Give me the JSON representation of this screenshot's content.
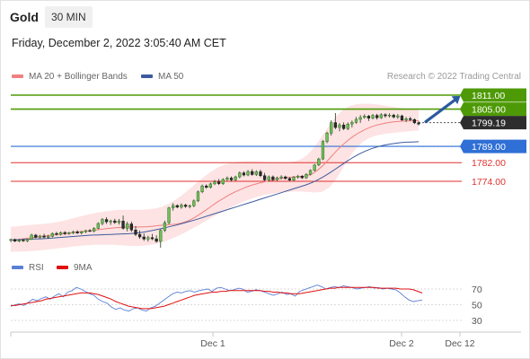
{
  "header": {
    "symbol": "Gold",
    "timeframe": "30 MIN",
    "datetime": "Friday, December 2, 2022 3:05:40 AM CET"
  },
  "legend": {
    "ma20_label": "MA 20 + Bollinger Bands",
    "ma50_label": "MA 50",
    "credit": "Research © 2022 Trading Central"
  },
  "rsi_legend": {
    "rsi_label": "RSI",
    "ma_label": "9MA"
  },
  "colors": {
    "resistance": "#4e9a06",
    "current_tag": "#2d2d2d",
    "pivot": "#2f6fd6",
    "support": "#e03131",
    "ma20": "#f08080",
    "ma50": "#3d5a9e",
    "band_fill": "#fde0e0",
    "arrow": "#2c5aa0",
    "rsi": "#5b7fd6",
    "rsi_ma": "#e01010"
  },
  "chart_data": [
    {
      "type": "candlestick",
      "instrument": "Gold",
      "timeframe": "30 MIN",
      "x_ticks": [
        "Dec 1",
        "Dec 2",
        "Dec 12"
      ],
      "ylim": [
        1745,
        1815
      ],
      "levels": [
        {
          "value": 1811.0,
          "label": "1811.00",
          "kind": "resistance"
        },
        {
          "value": 1805.0,
          "label": "1805.00",
          "kind": "resistance"
        },
        {
          "value": 1799.19,
          "label": "1799.19",
          "kind": "current"
        },
        {
          "value": 1789.0,
          "label": "1789.00",
          "kind": "pivot"
        },
        {
          "value": 1782.0,
          "label": "1782.00",
          "kind": "support"
        },
        {
          "value": 1774.0,
          "label": "1774.00",
          "kind": "support"
        }
      ],
      "ohlc": [
        [
          1748.6,
          1749.4,
          1747.9,
          1749.0
        ],
        [
          1749.0,
          1749.4,
          1747.9,
          1748.3
        ],
        [
          1748.3,
          1749.2,
          1747.8,
          1748.7
        ],
        [
          1748.7,
          1749.3,
          1748.0,
          1748.4
        ],
        [
          1748.4,
          1749.4,
          1747.9,
          1749.1
        ],
        [
          1749.1,
          1751.5,
          1748.8,
          1750.9
        ],
        [
          1750.9,
          1751.4,
          1749.6,
          1749.9
        ],
        [
          1749.9,
          1751.0,
          1749.3,
          1750.5
        ],
        [
          1750.5,
          1751.5,
          1749.6,
          1750.0
        ],
        [
          1750.0,
          1751.0,
          1749.4,
          1750.4
        ],
        [
          1750.4,
          1752.0,
          1750.0,
          1751.6
        ],
        [
          1751.6,
          1752.3,
          1750.7,
          1751.2
        ],
        [
          1751.2,
          1752.4,
          1750.7,
          1752.0
        ],
        [
          1752.0,
          1752.6,
          1750.9,
          1751.5
        ],
        [
          1751.5,
          1752.3,
          1751.0,
          1751.9
        ],
        [
          1751.9,
          1752.8,
          1751.3,
          1752.3
        ],
        [
          1752.3,
          1753.0,
          1751.4,
          1751.8
        ],
        [
          1751.8,
          1752.7,
          1751.2,
          1752.3
        ],
        [
          1752.3,
          1753.2,
          1751.8,
          1752.8
        ],
        [
          1752.8,
          1753.5,
          1752.2,
          1752.6
        ],
        [
          1752.6,
          1754.3,
          1752.1,
          1753.8
        ],
        [
          1753.8,
          1756.4,
          1753.4,
          1755.9
        ],
        [
          1755.9,
          1758.2,
          1755.1,
          1757.6
        ],
        [
          1757.6,
          1758.6,
          1755.7,
          1756.6
        ],
        [
          1756.6,
          1757.5,
          1755.3,
          1757.0
        ],
        [
          1757.0,
          1757.9,
          1755.7,
          1756.3
        ],
        [
          1756.3,
          1757.8,
          1755.4,
          1756.9
        ],
        [
          1756.9,
          1759.3,
          1753.2,
          1753.8
        ],
        [
          1753.8,
          1756.6,
          1752.5,
          1755.7
        ],
        [
          1755.7,
          1756.7,
          1752.3,
          1753.1
        ],
        [
          1753.1,
          1754.8,
          1750.5,
          1751.2
        ],
        [
          1751.2,
          1752.9,
          1749.3,
          1750.1
        ],
        [
          1750.1,
          1751.6,
          1748.4,
          1749.2
        ],
        [
          1749.2,
          1750.6,
          1748.1,
          1749.8
        ],
        [
          1749.8,
          1751.4,
          1748.7,
          1749.3
        ],
        [
          1749.3,
          1750.8,
          1747.6,
          1748.2
        ],
        [
          1748.2,
          1753.4,
          1745.5,
          1752.9
        ],
        [
          1752.9,
          1757.1,
          1752.2,
          1756.2
        ],
        [
          1756.2,
          1763.0,
          1755.6,
          1762.6
        ],
        [
          1762.6,
          1764.6,
          1761.4,
          1763.6
        ],
        [
          1763.6,
          1764.1,
          1762.4,
          1762.9
        ],
        [
          1762.9,
          1764.5,
          1762.2,
          1763.8
        ],
        [
          1763.8,
          1764.3,
          1762.6,
          1763.2
        ],
        [
          1763.2,
          1764.0,
          1762.4,
          1763.5
        ],
        [
          1763.5,
          1766.2,
          1762.9,
          1765.6
        ],
        [
          1765.6,
          1770.0,
          1765.1,
          1769.5
        ],
        [
          1769.5,
          1772.6,
          1768.9,
          1772.0
        ],
        [
          1772.0,
          1772.7,
          1770.8,
          1771.4
        ],
        [
          1771.4,
          1773.4,
          1770.9,
          1772.9
        ],
        [
          1772.9,
          1774.6,
          1772.4,
          1773.8
        ],
        [
          1773.8,
          1775.0,
          1772.4,
          1773.0
        ],
        [
          1773.0,
          1775.3,
          1772.5,
          1774.8
        ],
        [
          1774.8,
          1776.1,
          1774.2,
          1775.4
        ],
        [
          1775.4,
          1776.1,
          1773.9,
          1774.6
        ],
        [
          1774.6,
          1776.4,
          1774.1,
          1775.9
        ],
        [
          1775.9,
          1778.2,
          1775.3,
          1777.6
        ],
        [
          1777.6,
          1778.3,
          1776.1,
          1776.7
        ],
        [
          1776.7,
          1778.8,
          1776.2,
          1778.2
        ],
        [
          1778.2,
          1779.2,
          1776.4,
          1776.9
        ],
        [
          1776.9,
          1778.7,
          1776.3,
          1778.1
        ],
        [
          1778.1,
          1779.0,
          1775.8,
          1776.4
        ],
        [
          1776.4,
          1777.6,
          1774.0,
          1774.6
        ],
        [
          1774.6,
          1776.5,
          1773.9,
          1775.9
        ],
        [
          1775.9,
          1776.5,
          1774.1,
          1774.7
        ],
        [
          1774.7,
          1776.0,
          1774.2,
          1775.5
        ],
        [
          1775.5,
          1776.6,
          1774.8,
          1775.9
        ],
        [
          1775.9,
          1776.4,
          1774.7,
          1775.2
        ],
        [
          1775.2,
          1775.8,
          1773.9,
          1774.5
        ],
        [
          1774.5,
          1776.3,
          1774.0,
          1775.8
        ],
        [
          1775.8,
          1776.8,
          1775.1,
          1776.2
        ],
        [
          1776.2,
          1776.7,
          1775.0,
          1775.5
        ],
        [
          1775.5,
          1777.5,
          1775.0,
          1777.0
        ],
        [
          1777.0,
          1779.1,
          1776.5,
          1778.7
        ],
        [
          1778.7,
          1781.4,
          1778.2,
          1781.0
        ],
        [
          1781.0,
          1784.1,
          1780.5,
          1783.6
        ],
        [
          1783.6,
          1791.7,
          1783.1,
          1791.1
        ],
        [
          1791.1,
          1795.3,
          1790.4,
          1794.7
        ],
        [
          1794.7,
          1800.2,
          1793.6,
          1799.2
        ],
        [
          1799.2,
          1803.3,
          1796.4,
          1797.1
        ],
        [
          1797.1,
          1799.0,
          1795.5,
          1798.2
        ],
        [
          1798.2,
          1799.3,
          1796.0,
          1796.6
        ],
        [
          1796.6,
          1799.3,
          1796.0,
          1798.6
        ],
        [
          1798.6,
          1800.1,
          1797.1,
          1799.3
        ],
        [
          1799.3,
          1801.6,
          1798.7,
          1800.6
        ],
        [
          1800.6,
          1802.4,
          1799.1,
          1801.4
        ],
        [
          1801.4,
          1802.8,
          1800.9,
          1802.0
        ],
        [
          1802.0,
          1802.5,
          1799.9,
          1801.1
        ],
        [
          1801.1,
          1802.9,
          1800.6,
          1802.3
        ],
        [
          1802.3,
          1803.0,
          1800.5,
          1801.3
        ],
        [
          1801.3,
          1803.2,
          1800.8,
          1802.6
        ],
        [
          1802.6,
          1803.2,
          1801.3,
          1802.1
        ],
        [
          1802.1,
          1803.2,
          1801.4,
          1802.4
        ],
        [
          1802.4,
          1803.0,
          1801.0,
          1801.6
        ],
        [
          1801.6,
          1802.9,
          1800.8,
          1802.1
        ],
        [
          1802.1,
          1802.6,
          1799.9,
          1800.3
        ],
        [
          1800.3,
          1801.6,
          1799.4,
          1800.9
        ],
        [
          1800.9,
          1801.7,
          1799.8,
          1800.5
        ],
        [
          1800.5,
          1801.0,
          1798.6,
          1799.1
        ],
        [
          1799.1,
          1799.8,
          1798.0,
          1798.6
        ]
      ],
      "ma20": [
        1748.6,
        1748.9,
        1749.3,
        1749.6,
        1750.0,
        1750.3,
        1750.6,
        1750.9,
        1751.2,
        1751.5,
        1751.8,
        1752.1,
        1752.4,
        1752.7,
        1753.0,
        1753.3,
        1753.6,
        1753.9,
        1754.1,
        1754.3,
        1754.4,
        1754.4,
        1754.4,
        1754.5,
        1754.7,
        1755.0,
        1755.2,
        1755.4,
        1755.6,
        1756.1,
        1757.0,
        1758.3,
        1759.9,
        1761.6,
        1763.4,
        1765.2,
        1766.7,
        1768.2,
        1769.5,
        1770.6,
        1771.7,
        1772.5,
        1773.2,
        1773.8,
        1774.4,
        1774.9,
        1775.4,
        1775.7,
        1775.9,
        1776.0,
        1776.3,
        1777.2,
        1778.9,
        1781.2,
        1784.0,
        1786.8,
        1789.3,
        1791.5,
        1793.4,
        1795.0,
        1796.3,
        1797.4,
        1798.2,
        1798.8,
        1799.3,
        1799.6,
        1799.8,
        1799.9,
        1800.0,
        1800.0
      ],
      "band_upper": [
        1754.5,
        1754.7,
        1755.0,
        1755.3,
        1755.5,
        1755.8,
        1756.1,
        1756.6,
        1757.3,
        1758.1,
        1758.9,
        1759.6,
        1760.2,
        1760.8,
        1761.2,
        1761.6,
        1761.8,
        1761.8,
        1761.8,
        1761.8,
        1762.0,
        1762.4,
        1763.2,
        1764.6,
        1766.4,
        1768.6,
        1771.0,
        1773.6,
        1776.0,
        1778.2,
        1780.0,
        1781.2,
        1782.0,
        1782.4,
        1782.6,
        1782.6,
        1782.5,
        1782.3,
        1782.1,
        1782.0,
        1782.1,
        1782.5,
        1783.5,
        1785.6,
        1789.0,
        1793.3,
        1797.8,
        1801.7,
        1804.5,
        1806.3,
        1807.1,
        1807.3,
        1807.3,
        1807.0,
        1806.6,
        1806.1,
        1805.6,
        1805.3,
        1805.1,
        1805.0
      ],
      "band_lower": [
        1743.8,
        1743.8,
        1743.9,
        1744.1,
        1744.3,
        1744.6,
        1744.9,
        1745.3,
        1745.6,
        1746.0,
        1746.3,
        1746.5,
        1746.7,
        1746.8,
        1746.8,
        1746.7,
        1746.5,
        1746.3,
        1746.2,
        1746.3,
        1746.6,
        1747.1,
        1747.9,
        1749.0,
        1750.3,
        1751.7,
        1753.3,
        1754.9,
        1756.6,
        1758.3,
        1759.9,
        1761.5,
        1763.0,
        1764.4,
        1765.6,
        1766.7,
        1767.6,
        1768.3,
        1768.8,
        1769.2,
        1769.4,
        1769.6,
        1769.6,
        1769.4,
        1769.2,
        1769.5,
        1771.1,
        1774.6,
        1779.5,
        1784.4,
        1788.3,
        1791.1,
        1792.8,
        1793.7,
        1794.3,
        1794.7,
        1795.0,
        1795.3,
        1795.6,
        1795.9
      ],
      "ma50": [
        1748.8,
        1748.9,
        1749.0,
        1749.1,
        1749.2,
        1749.3,
        1749.4,
        1749.6,
        1749.8,
        1750.0,
        1750.2,
        1750.4,
        1750.6,
        1750.8,
        1750.9,
        1751.0,
        1751.1,
        1751.2,
        1751.3,
        1751.4,
        1751.5,
        1751.7,
        1752.0,
        1752.4,
        1752.9,
        1753.4,
        1754.0,
        1754.6,
        1755.2,
        1755.9,
        1756.6,
        1757.3,
        1758.1,
        1758.9,
        1759.7,
        1760.5,
        1761.3,
        1762.1,
        1762.9,
        1763.7,
        1764.5,
        1765.3,
        1766.1,
        1766.9,
        1767.7,
        1768.5,
        1769.3,
        1770.1,
        1770.9,
        1771.7,
        1772.5,
        1773.5,
        1774.7,
        1776.1,
        1777.7,
        1779.4,
        1781.1,
        1782.8,
        1784.4,
        1785.8,
        1787.0,
        1788.0,
        1788.8,
        1789.4,
        1789.9,
        1790.3,
        1790.6,
        1790.8,
        1790.9,
        1791.0
      ]
    },
    {
      "type": "line",
      "title": "RSI",
      "yticks": [
        70,
        50,
        30
      ],
      "ylim": [
        20,
        80
      ],
      "series": [
        {
          "name": "RSI",
          "values": [
            48,
            50,
            51,
            49,
            53,
            57,
            55,
            58,
            60,
            57,
            61,
            64,
            60,
            66,
            68,
            72,
            70,
            67,
            64,
            62,
            57,
            54,
            52,
            47,
            44,
            46,
            43,
            42,
            45,
            46,
            43,
            42,
            46,
            48,
            52,
            56,
            60,
            64,
            66,
            65,
            67,
            68,
            66,
            68,
            69,
            70,
            67,
            71,
            72,
            70,
            68,
            69,
            71,
            70,
            66,
            67,
            69,
            68,
            66,
            64,
            62,
            64,
            66,
            63,
            64,
            61,
            67,
            69,
            71,
            73,
            75,
            73,
            70,
            72,
            73,
            72,
            74,
            73,
            72,
            70,
            71,
            72,
            73,
            71,
            72,
            70,
            71,
            70,
            69,
            65,
            60,
            56,
            54,
            55,
            56
          ]
        },
        {
          "name": "9MA",
          "values": [
            49,
            49,
            50,
            51,
            52,
            53,
            54,
            55,
            57,
            58,
            59,
            60,
            61,
            62,
            63,
            64,
            65,
            65,
            65,
            64,
            63,
            61,
            59,
            57,
            54,
            52,
            50,
            48,
            47,
            46,
            45,
            45,
            45,
            46,
            47,
            48,
            50,
            52,
            54,
            56,
            58,
            60,
            62,
            63,
            64,
            65,
            66,
            66,
            67,
            67,
            68,
            68,
            68,
            68,
            68,
            68,
            68,
            68,
            67,
            67,
            66,
            66,
            65,
            65,
            64,
            64,
            64,
            65,
            66,
            67,
            68,
            69,
            70,
            71,
            71,
            72,
            72,
            72,
            72,
            72,
            72,
            72,
            72,
            72,
            71,
            71,
            71,
            71,
            71,
            70,
            70,
            70,
            69,
            67,
            65
          ]
        }
      ]
    }
  ]
}
